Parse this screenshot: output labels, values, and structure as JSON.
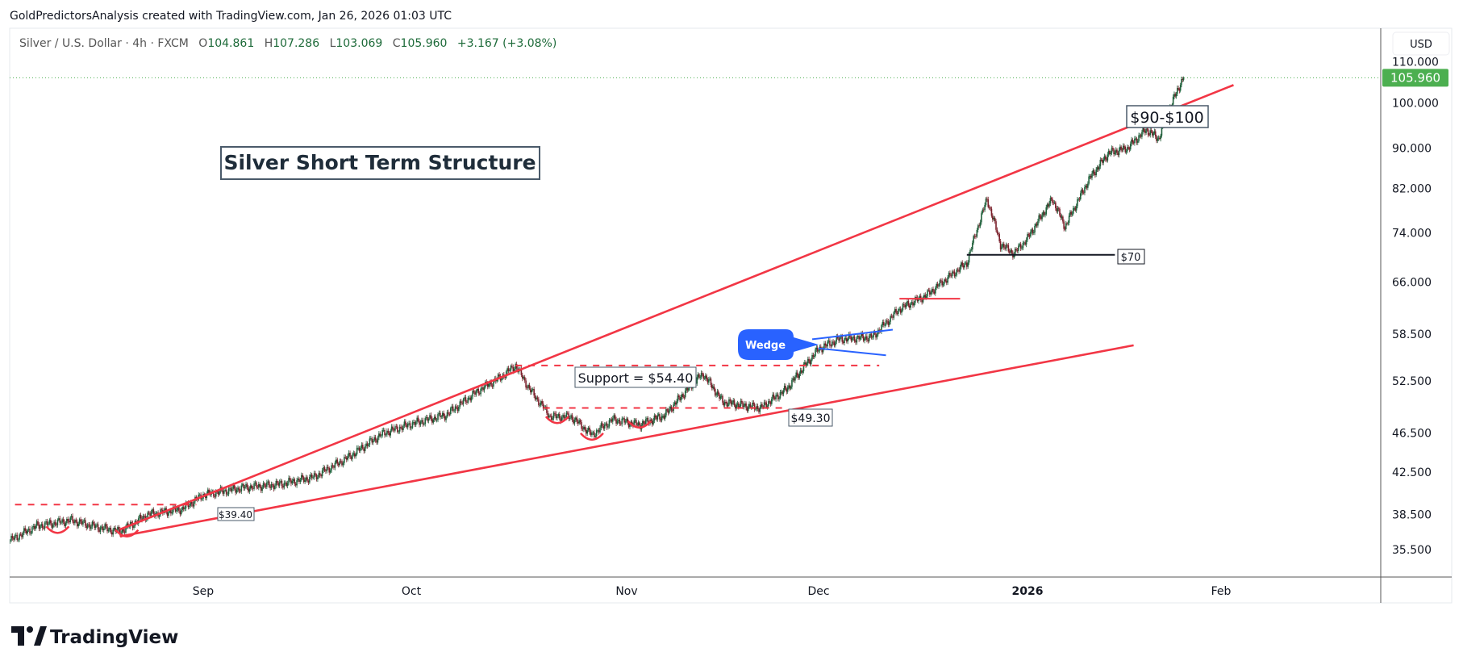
{
  "header": {
    "attribution": "GoldPredictorsAnalysis created with TradingView.com, Jan 26, 2026 01:03 UTC"
  },
  "legend": {
    "symbol": "Silver / U.S. Dollar · 4h · FXCM",
    "open_label": "O",
    "open": "104.861",
    "high_label": "H",
    "high": "107.286",
    "low_label": "L",
    "low": "103.069",
    "close_label": "C",
    "close": "105.960",
    "change": "+3.167 (+3.08%)"
  },
  "price_axis": {
    "currency_button": "USD",
    "last_price": "105.960",
    "last_price_color": "#4caf50"
  },
  "branding": {
    "logo_text": "TradingView"
  },
  "colors": {
    "up": "#1f5f3a",
    "down": "#7a1f2a",
    "trendline": "#f23645",
    "wedge": "#2962ff",
    "level": "#131722"
  },
  "chart_data": {
    "type": "candlestick",
    "title": "Silver Short Term Structure",
    "interval": "4h",
    "y_scale": "log",
    "ylim": [
      34.5,
      112
    ],
    "y_ticks": [
      "110.000",
      "100.000",
      "90.000",
      "82.000",
      "74.000",
      "66.000",
      "58.500",
      "52.500",
      "46.500",
      "42.500",
      "38.500",
      "35.500"
    ],
    "x_ticks": [
      {
        "label": "Sep",
        "date": "2025-09-01"
      },
      {
        "label": "Oct",
        "date": "2025-10-01"
      },
      {
        "label": "Nov",
        "date": "2025-11-01"
      },
      {
        "label": "Dec",
        "date": "2025-12-01"
      },
      {
        "label": "2026",
        "date": "2026-01-01"
      },
      {
        "label": "Feb",
        "date": "2026-02-01"
      }
    ],
    "price_path": [
      [
        "2025-08-04",
        36.2
      ],
      [
        "2025-08-08",
        37.5
      ],
      [
        "2025-08-13",
        38.0
      ],
      [
        "2025-08-16",
        37.5
      ],
      [
        "2025-08-20",
        37.0
      ],
      [
        "2025-08-24",
        38.5
      ],
      [
        "2025-08-29",
        39.0
      ],
      [
        "2025-09-01",
        40.3
      ],
      [
        "2025-09-07",
        41.0
      ],
      [
        "2025-09-12",
        41.3
      ],
      [
        "2025-09-17",
        42.0
      ],
      [
        "2025-09-22",
        44.0
      ],
      [
        "2025-09-27",
        46.5
      ],
      [
        "2025-10-01",
        47.5
      ],
      [
        "2025-10-06",
        48.5
      ],
      [
        "2025-10-11",
        51.5
      ],
      [
        "2025-10-14",
        53.0
      ],
      [
        "2025-10-16",
        54.4
      ],
      [
        "2025-10-18",
        51.5
      ],
      [
        "2025-10-21",
        48.3
      ],
      [
        "2025-10-24",
        48.3
      ],
      [
        "2025-10-27",
        46.3
      ],
      [
        "2025-10-30",
        48.0
      ],
      [
        "2025-11-03",
        47.4
      ],
      [
        "2025-11-07",
        48.5
      ],
      [
        "2025-11-12",
        52.7
      ],
      [
        "2025-11-13",
        53.3
      ],
      [
        "2025-11-16",
        50.0
      ],
      [
        "2025-11-19",
        49.6
      ],
      [
        "2025-11-22",
        49.3
      ],
      [
        "2025-11-26",
        51.5
      ],
      [
        "2025-12-01",
        56.5
      ],
      [
        "2025-12-04",
        57.8
      ],
      [
        "2025-12-09",
        58.1
      ],
      [
        "2025-12-13",
        62.0
      ],
      [
        "2025-12-17",
        64.0
      ],
      [
        "2025-12-23",
        69.0
      ],
      [
        "2025-12-26",
        80.0
      ],
      [
        "2025-12-28",
        72.0
      ],
      [
        "2025-12-30",
        70.5
      ],
      [
        "2026-01-01",
        73.0
      ],
      [
        "2026-01-05",
        80.0
      ],
      [
        "2026-01-07",
        75.0
      ],
      [
        "2026-01-11",
        84.0
      ],
      [
        "2026-01-14",
        89.0
      ],
      [
        "2026-01-17",
        90.0
      ],
      [
        "2026-01-20",
        94.0
      ],
      [
        "2026-01-22",
        92.0
      ],
      [
        "2026-01-25",
        103.0
      ],
      [
        "2026-01-26",
        105.96
      ]
    ],
    "last_price": 105.96,
    "trendlines": [
      {
        "name": "upper-channel",
        "color": "#f23645",
        "from": [
          "2025-08-20",
          37.2
        ],
        "to": [
          "2026-02-03",
          104.2
        ]
      },
      {
        "name": "lower-channel",
        "color": "#f23645",
        "from": [
          "2025-08-20",
          36.6
        ],
        "to": [
          "2026-01-18",
          57.0
        ]
      },
      {
        "name": "wedge-upper",
        "color": "#2962ff",
        "from": [
          "2025-11-30",
          57.8
        ],
        "to": [
          "2025-12-12",
          59.1
        ]
      },
      {
        "name": "wedge-lower",
        "color": "#2962ff",
        "from": [
          "2025-12-01",
          56.6
        ],
        "to": [
          "2025-12-11",
          55.7
        ]
      }
    ],
    "levels": [
      {
        "name": "level-39-40",
        "price": 39.4,
        "from": "2025-08-03",
        "to": "2025-08-31",
        "style": "dashed",
        "color": "#f23645"
      },
      {
        "name": "level-54-40",
        "price": 54.4,
        "from": "2025-10-16",
        "to": "2025-12-10",
        "style": "dashed",
        "color": "#f23645"
      },
      {
        "name": "level-49-30",
        "price": 49.3,
        "from": "2025-10-20",
        "to": "2025-11-26",
        "style": "dashed",
        "color": "#f23645"
      },
      {
        "name": "level-63-50",
        "price": 63.5,
        "from": "2025-12-13",
        "to": "2025-12-22",
        "style": "solid",
        "color": "#f23645"
      },
      {
        "name": "level-70",
        "price": 70.3,
        "from": "2025-12-23",
        "to": "2026-01-15",
        "style": "solid",
        "color": "#131722"
      }
    ],
    "bottom_markers": [
      {
        "date": "2025-08-11",
        "price": 36.9
      },
      {
        "date": "2025-08-21",
        "price": 36.6
      },
      {
        "date": "2025-10-22",
        "price": 47.6
      },
      {
        "date": "2025-10-27",
        "price": 45.8
      },
      {
        "date": "2025-11-03",
        "price": 47.1
      }
    ],
    "annotations": {
      "target": "$90-$100",
      "level_70": "$70",
      "support": "Support = $54.40",
      "level_4930": "$49.30",
      "level_3940": "$39.40",
      "wedge": "Wedge"
    }
  }
}
